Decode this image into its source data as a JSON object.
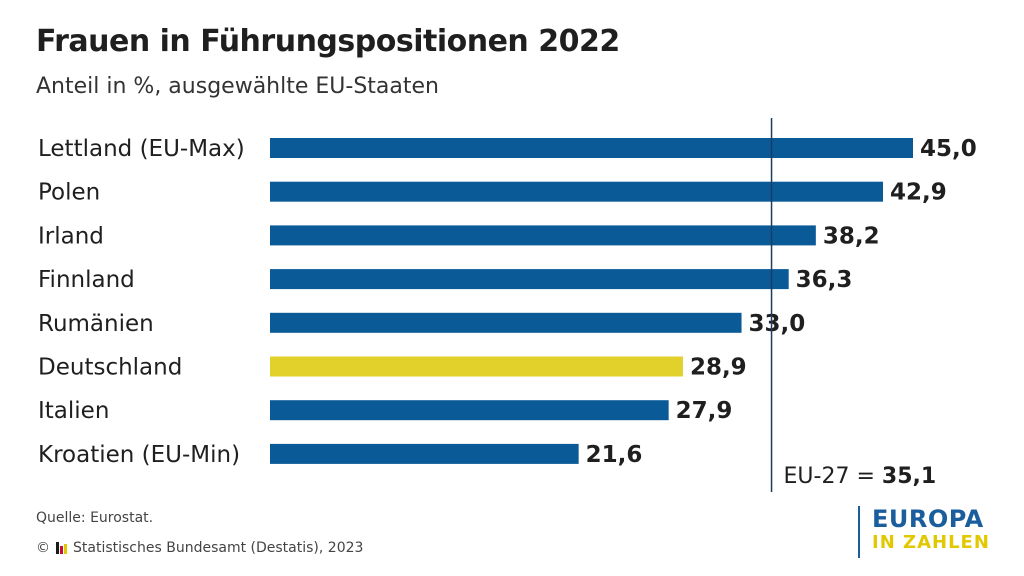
{
  "header": {
    "title": "Frauen in Führungspositionen 2022",
    "subtitle": "Anteil in %, ausgewählte EU-Staaten"
  },
  "chart_data": {
    "type": "bar",
    "orientation": "horizontal",
    "title": "Frauen in Führungspositionen 2022",
    "subtitle": "Anteil in %, ausgewählte EU-Staaten",
    "categories": [
      "Lettland (EU-Max)",
      "Polen",
      "Irland",
      "Finnland",
      "Rumänien",
      "Deutschland",
      "Italien",
      "Kroatien (EU-Min)"
    ],
    "values": [
      45.0,
      42.9,
      38.2,
      36.3,
      33.0,
      28.9,
      27.9,
      21.6
    ],
    "value_labels": [
      "45,0",
      "42,9",
      "38,2",
      "36,3",
      "33,0",
      "28,9",
      "27,9",
      "21,6"
    ],
    "highlight": "Deutschland",
    "xlim": [
      0,
      45
    ],
    "reference_line": {
      "label": "EU-27 =",
      "value": 35.1,
      "value_label": "35,1"
    },
    "colors": {
      "bar": "#0a5a98",
      "highlight": "#e2d12a",
      "reference": "#1b3d63"
    }
  },
  "footer": {
    "source": "Quelle: Eurostat.",
    "copyright": "© ",
    "copyright_text": "Statistisches Bundesamt (Destatis), 2023"
  },
  "brand": {
    "line1": "EUROPA",
    "line2": "IN ZAHLEN"
  }
}
